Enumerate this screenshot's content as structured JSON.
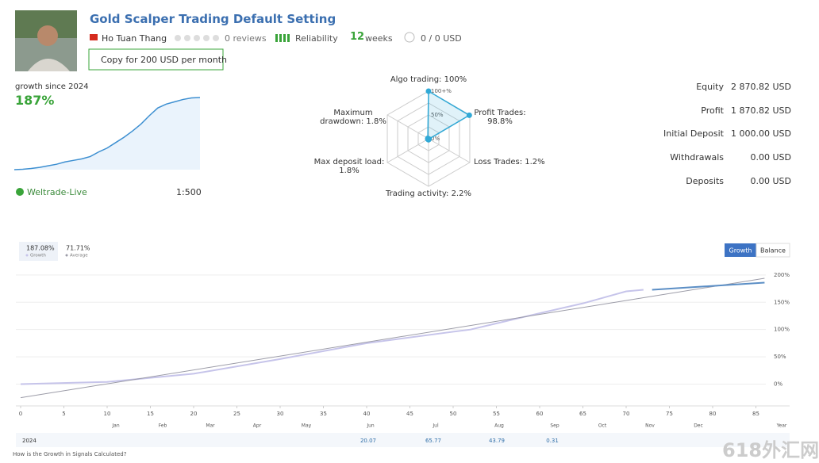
{
  "header": {
    "title": "Gold Scalper Trading Default Setting",
    "author": "Ho Tuan Thang",
    "reviews": "0 reviews",
    "reliability": "Reliability",
    "weeks_value": "12",
    "weeks_label": "weeks",
    "subscribers": "0 / 0 USD",
    "copy_button": "Copy for 200 USD per month"
  },
  "summary": {
    "growth_label": "growth since 2024",
    "growth_value": "187%",
    "broker": "Weltrade-Live",
    "leverage": "1:500"
  },
  "stats": [
    {
      "label": "Equity",
      "value": "2 870.82 USD"
    },
    {
      "label": "Profit",
      "value": "1 870.82 USD"
    },
    {
      "label": "Initial Deposit",
      "value": "1 000.00 USD"
    },
    {
      "label": "Withdrawals",
      "value": "0.00 USD"
    },
    {
      "label": "Deposits",
      "value": "0.00 USD"
    }
  ],
  "chart_data": [
    {
      "type": "area",
      "color": "#3d8fd1",
      "values": [
        0,
        1,
        3,
        6,
        10,
        14,
        20,
        24,
        28,
        34,
        46,
        56,
        70,
        84,
        100,
        118,
        140,
        160,
        170,
        176,
        182,
        186,
        187
      ]
    },
    {
      "type": "radar",
      "color": "#31a9d6",
      "labels": [
        "Algo trading: 100%",
        "Profit Trades: 98.8%",
        "Loss Trades: 1.2%",
        "Trading activity: 2.2%",
        "Max deposit load: 1.8%",
        "Maximum drawdown: 1.8%"
      ],
      "values": [
        100,
        98.8,
        1.2,
        2.2,
        1.8,
        1.8
      ],
      "rlim": [
        0,
        100
      ],
      "rticks": [
        {
          "value": 100,
          "label": "100+%"
        },
        {
          "value": 50,
          "label": "50%"
        },
        {
          "value": 0,
          "label": "0%"
        }
      ]
    },
    {
      "type": "line",
      "buttons": [
        "Growth",
        "Balance"
      ],
      "xlim": [
        0,
        86
      ],
      "ylim": [
        -40,
        210
      ],
      "xticks": [
        0,
        5,
        10,
        15,
        20,
        25,
        30,
        35,
        40,
        45,
        50,
        55,
        60,
        65,
        70,
        75,
        80,
        85
      ],
      "yticks": [
        {
          "value": 0,
          "label": "0%"
        },
        {
          "value": 50,
          "label": "50%"
        },
        {
          "value": 100,
          "label": "100%"
        },
        {
          "value": 150,
          "label": "150%"
        },
        {
          "value": 200,
          "label": "200%"
        }
      ],
      "grid": true,
      "series": [
        {
          "name": "Growth",
          "value_label": "187.08%",
          "color": "#c6c4ea",
          "x": [
            0,
            10,
            20,
            30,
            40,
            50,
            52,
            60,
            65,
            70,
            72
          ],
          "values": [
            0,
            4,
            19,
            46,
            75,
            96,
            100,
            130,
            148,
            170,
            173
          ]
        },
        {
          "name": "Average",
          "value_label": "71.71%",
          "color": "#9c9ca8",
          "x": [
            0,
            86
          ],
          "values": [
            -25,
            194
          ]
        },
        {
          "color": "#5b8ec5",
          "x": [
            73,
            78,
            82,
            86
          ],
          "values": [
            173,
            178,
            182,
            186
          ]
        }
      ]
    }
  ],
  "calendar": {
    "months": [
      "Jan",
      "Feb",
      "Mar",
      "Apr",
      "May",
      "Jun",
      "Jul",
      "Aug",
      "Sep",
      "Oct",
      "Nov",
      "Dec",
      "Year"
    ],
    "year": "2024",
    "values": [
      null,
      null,
      null,
      null,
      null,
      "20.07",
      "65.77",
      "43.79",
      "0.31",
      null,
      null,
      null,
      null
    ],
    "link": "How is the Growth in Signals Calculated?"
  },
  "watermark": "618外汇网"
}
